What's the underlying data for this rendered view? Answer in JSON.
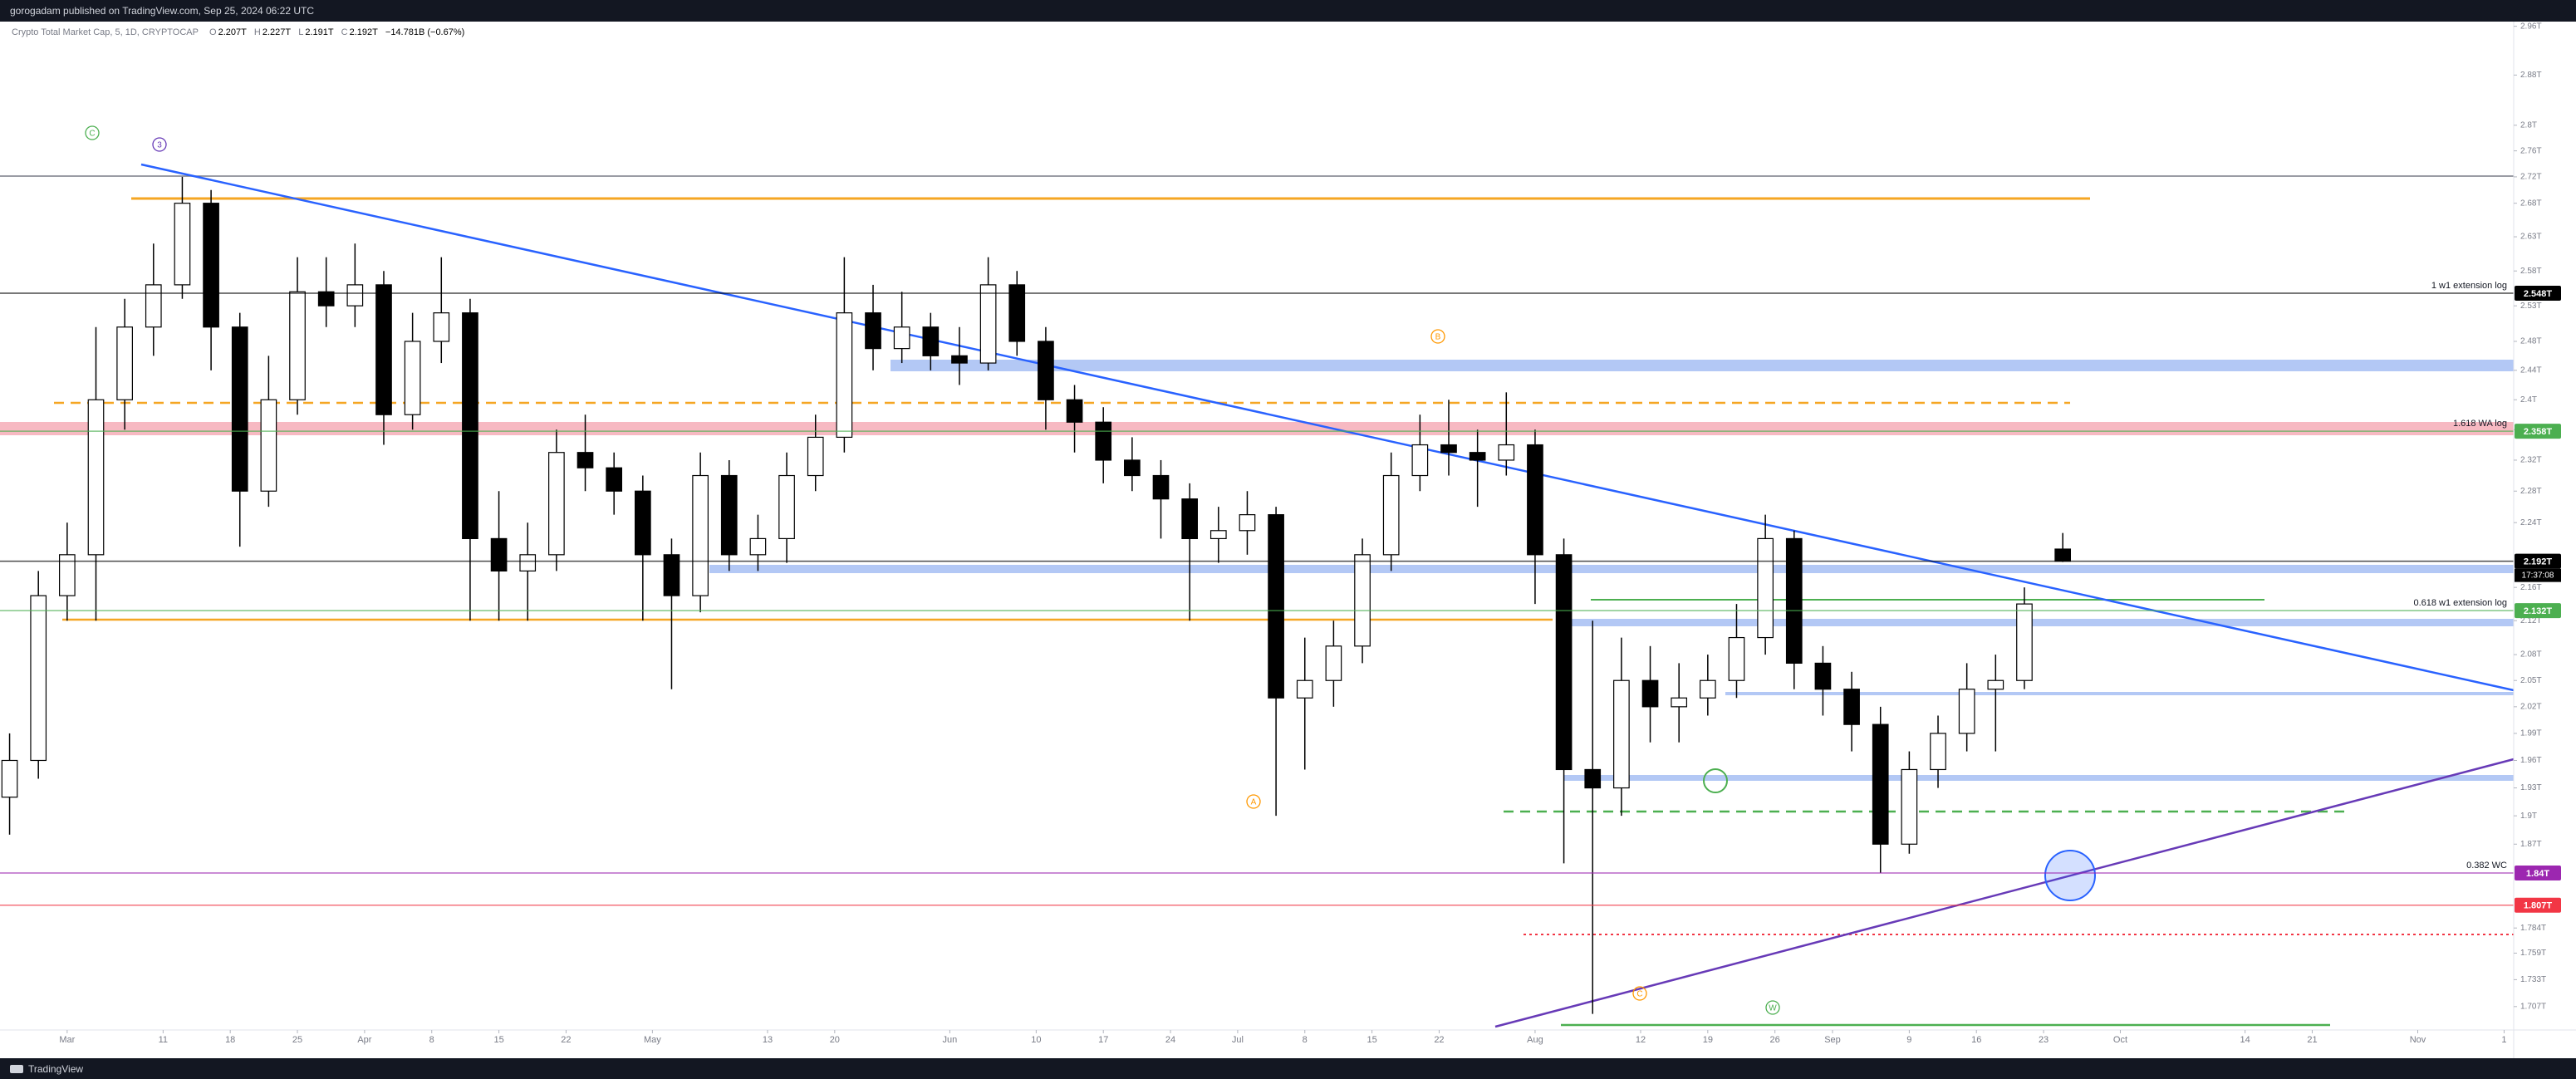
{
  "header": {
    "text": "gorogadam published on TradingView.com, Sep 25, 2024 06:22 UTC"
  },
  "footer": {
    "brand": "TradingView"
  },
  "chart_data": {
    "type": "candlestick",
    "legend": {
      "symbol": "Crypto Total Market Cap, 5, 1D, CRYPTOCAP",
      "items": [
        {
          "key": "O",
          "value": "2.207T"
        },
        {
          "key": "H",
          "value": "2.227T"
        },
        {
          "key": "L",
          "value": "2.191T"
        },
        {
          "key": "C",
          "value": "2.192T"
        }
      ],
      "change": "−14.781B (−0.67%)"
    },
    "x": [
      "Feb 24",
      "Feb 27",
      "Mar 1",
      "Mar 4",
      "Mar 7",
      "Mar 10",
      "Mar 13",
      "Mar 16",
      "Mar 19",
      "Mar 22",
      "Mar 25",
      "Mar 28",
      "Mar 31",
      "Apr 3",
      "Apr 6",
      "Apr 9",
      "Apr 12",
      "Apr 15",
      "Apr 18",
      "Apr 21",
      "Apr 24",
      "Apr 27",
      "Apr 30",
      "May 3",
      "May 6",
      "May 9",
      "May 12",
      "May 15",
      "May 18",
      "May 21",
      "May 24",
      "May 27",
      "May 30",
      "Jun 2",
      "Jun 5",
      "Jun 8",
      "Jun 11",
      "Jun 14",
      "Jun 17",
      "Jun 20",
      "Jun 23",
      "Jun 26",
      "Jun 29",
      "Jul 2",
      "Jul 5",
      "Jul 8",
      "Jul 11",
      "Jul 14",
      "Jul 17",
      "Jul 20",
      "Jul 23",
      "Jul 26",
      "Jul 29",
      "Aug 1",
      "Aug 4",
      "Aug 7",
      "Aug 10",
      "Aug 13",
      "Aug 16",
      "Aug 19",
      "Aug 22",
      "Aug 25",
      "Aug 28",
      "Aug 31",
      "Sep 3",
      "Sep 6",
      "Sep 9",
      "Sep 12",
      "Sep 15",
      "Sep 18",
      "Sep 21",
      "Sep 25"
    ],
    "open": [
      1.92,
      1.96,
      2.15,
      2.2,
      2.4,
      2.5,
      2.56,
      2.68,
      2.5,
      2.28,
      2.4,
      2.55,
      2.53,
      2.56,
      2.38,
      2.48,
      2.52,
      2.22,
      2.18,
      2.2,
      2.33,
      2.31,
      2.28,
      2.2,
      2.15,
      2.3,
      2.2,
      2.22,
      2.3,
      2.35,
      2.52,
      2.47,
      2.5,
      2.46,
      2.45,
      2.56,
      2.48,
      2.4,
      2.37,
      2.32,
      2.3,
      2.27,
      2.22,
      2.23,
      2.25,
      2.03,
      2.05,
      2.09,
      2.2,
      2.3,
      2.34,
      2.33,
      2.32,
      2.34,
      2.2,
      1.95,
      1.93,
      2.05,
      2.02,
      2.03,
      2.05,
      2.1,
      2.22,
      2.07,
      2.04,
      2.0,
      1.87,
      1.95,
      1.99,
      2.04,
      2.05,
      2.207
    ],
    "high": [
      1.99,
      2.18,
      2.24,
      2.5,
      2.54,
      2.62,
      2.72,
      2.7,
      2.52,
      2.46,
      2.6,
      2.6,
      2.62,
      2.58,
      2.52,
      2.6,
      2.54,
      2.28,
      2.24,
      2.36,
      2.38,
      2.33,
      2.3,
      2.22,
      2.33,
      2.32,
      2.25,
      2.33,
      2.38,
      2.6,
      2.56,
      2.55,
      2.52,
      2.5,
      2.6,
      2.58,
      2.5,
      2.42,
      2.39,
      2.35,
      2.32,
      2.29,
      2.26,
      2.28,
      2.26,
      2.1,
      2.12,
      2.22,
      2.33,
      2.38,
      2.4,
      2.36,
      2.41,
      2.36,
      2.22,
      2.12,
      2.1,
      2.09,
      2.07,
      2.08,
      2.14,
      2.25,
      2.23,
      2.09,
      2.06,
      2.02,
      1.97,
      2.01,
      2.07,
      2.08,
      2.16,
      2.227
    ],
    "low": [
      1.88,
      1.94,
      2.12,
      2.12,
      2.36,
      2.46,
      2.54,
      2.44,
      2.21,
      2.26,
      2.38,
      2.5,
      2.5,
      2.34,
      2.36,
      2.45,
      2.12,
      2.12,
      2.12,
      2.18,
      2.28,
      2.25,
      2.12,
      2.04,
      2.13,
      2.18,
      2.18,
      2.19,
      2.28,
      2.33,
      2.44,
      2.45,
      2.44,
      2.42,
      2.44,
      2.46,
      2.36,
      2.33,
      2.29,
      2.28,
      2.22,
      2.12,
      2.19,
      2.2,
      1.9,
      1.95,
      2.02,
      2.07,
      2.18,
      2.28,
      2.3,
      2.26,
      2.3,
      2.14,
      1.85,
      1.7,
      1.9,
      1.98,
      1.98,
      2.01,
      2.03,
      2.08,
      2.04,
      2.01,
      1.97,
      1.84,
      1.86,
      1.93,
      1.97,
      1.97,
      2.04,
      2.191
    ],
    "close": [
      1.96,
      2.15,
      2.2,
      2.4,
      2.5,
      2.56,
      2.68,
      2.5,
      2.28,
      2.4,
      2.55,
      2.53,
      2.56,
      2.38,
      2.48,
      2.52,
      2.22,
      2.18,
      2.2,
      2.33,
      2.31,
      2.28,
      2.2,
      2.15,
      2.3,
      2.2,
      2.22,
      2.3,
      2.35,
      2.52,
      2.47,
      2.5,
      2.46,
      2.45,
      2.56,
      2.48,
      2.4,
      2.37,
      2.32,
      2.3,
      2.27,
      2.22,
      2.23,
      2.25,
      2.03,
      2.05,
      2.09,
      2.2,
      2.3,
      2.34,
      2.33,
      2.32,
      2.34,
      2.2,
      1.95,
      1.93,
      2.05,
      2.02,
      2.03,
      2.05,
      2.1,
      2.22,
      2.07,
      2.04,
      2.0,
      1.87,
      1.95,
      1.99,
      2.04,
      2.05,
      2.14,
      2.192
    ],
    "up_color": "#ffffff",
    "down_color": "#000000",
    "xlim": [
      "Feb 23",
      "Nov 11"
    ],
    "xticks": [
      {
        "value": "Mar 1",
        "label": "Mar"
      },
      {
        "value": "Mar 11",
        "label": "11"
      },
      {
        "value": "Mar 18",
        "label": "18"
      },
      {
        "value": "Mar 25",
        "label": "25"
      },
      {
        "value": "Apr 1",
        "label": "Apr"
      },
      {
        "value": "Apr 8",
        "label": "8"
      },
      {
        "value": "Apr 15",
        "label": "15"
      },
      {
        "value": "Apr 22",
        "label": "22"
      },
      {
        "value": "May 1",
        "label": "May"
      },
      {
        "value": "May 13",
        "label": "13"
      },
      {
        "value": "May 20",
        "label": "20"
      },
      {
        "value": "Jun 1",
        "label": "Jun"
      },
      {
        "value": "Jun 10",
        "label": "10"
      },
      {
        "value": "Jun 17",
        "label": "17"
      },
      {
        "value": "Jun 24",
        "label": "24"
      },
      {
        "value": "Jul 1",
        "label": "Jul"
      },
      {
        "value": "Jul 8",
        "label": "8"
      },
      {
        "value": "Jul 15",
        "label": "15"
      },
      {
        "value": "Jul 22",
        "label": "22"
      },
      {
        "value": "Aug 1",
        "label": "Aug"
      },
      {
        "value": "Aug 12",
        "label": "12"
      },
      {
        "value": "Aug 19",
        "label": "19"
      },
      {
        "value": "Aug 26",
        "label": "26"
      },
      {
        "value": "Sep 1",
        "label": "Sep"
      },
      {
        "value": "Sep 9",
        "label": "9"
      },
      {
        "value": "Sep 16",
        "label": "16"
      },
      {
        "value": "Sep 23",
        "label": "23"
      },
      {
        "value": "Oct 1",
        "label": "Oct"
      },
      {
        "value": "Oct 14",
        "label": "14"
      },
      {
        "value": "Oct 21",
        "label": "21"
      },
      {
        "value": "Nov 1",
        "label": "Nov"
      },
      {
        "value": "Nov 10",
        "label": "1"
      }
    ],
    "ylim": [
      1.691,
      2.965
    ],
    "log_scale": true,
    "yticks": [
      {
        "value": 2.96,
        "label": "2.96T"
      },
      {
        "value": 2.88,
        "label": "2.88T"
      },
      {
        "value": 2.8,
        "label": "2.8T"
      },
      {
        "value": 2.76,
        "label": "2.76T"
      },
      {
        "value": 2.72,
        "label": "2.72T"
      },
      {
        "value": 2.68,
        "label": "2.68T"
      },
      {
        "value": 2.63,
        "label": "2.63T"
      },
      {
        "value": 2.58,
        "label": "2.58T"
      },
      {
        "value": 2.53,
        "label": "2.53T"
      },
      {
        "value": 2.48,
        "label": "2.48T"
      },
      {
        "value": 2.44,
        "label": "2.44T"
      },
      {
        "value": 2.4,
        "label": "2.4T"
      },
      {
        "value": 2.36,
        "label": "2.36T"
      },
      {
        "value": 2.32,
        "label": "2.32T"
      },
      {
        "value": 2.28,
        "label": "2.28T"
      },
      {
        "value": 2.24,
        "label": "2.24T"
      },
      {
        "value": 2.16,
        "label": "2.16T"
      },
      {
        "value": 2.12,
        "label": "2.12T"
      },
      {
        "value": 2.08,
        "label": "2.08T"
      },
      {
        "value": 2.05,
        "label": "2.05T"
      },
      {
        "value": 2.02,
        "label": "2.02T"
      },
      {
        "value": 1.99,
        "label": "1.99T"
      },
      {
        "value": 1.96,
        "label": "1.96T"
      },
      {
        "value": 1.93,
        "label": "1.93T"
      },
      {
        "value": 1.9,
        "label": "1.9T"
      },
      {
        "value": 1.87,
        "label": "1.87T"
      },
      {
        "value": 1.784,
        "label": "1.784T"
      },
      {
        "value": 1.759,
        "label": "1.759T"
      },
      {
        "value": 1.733,
        "label": "1.733T"
      },
      {
        "value": 1.707,
        "label": "1.707T"
      }
    ],
    "grid": false,
    "levels": [
      {
        "value": 2.548,
        "label": "2.548T",
        "note": "1 w1 extension log",
        "color": "#000000"
      },
      {
        "value": 2.358,
        "label": "2.358T",
        "note": "1.618 WA log",
        "color": "#4caf50"
      },
      {
        "value": 2.192,
        "label": "2.192T",
        "countdown": "17:37:08",
        "color": "#000000"
      },
      {
        "value": 2.132,
        "label": "2.132T",
        "note": "0.618 w1 extension log",
        "color": "#4caf50"
      },
      {
        "value": 1.84,
        "label": "1.84T",
        "note": "0.382 WC",
        "color": "#9c27b0"
      },
      {
        "value": 1.807,
        "label": "1.807T",
        "color": "#f23645"
      }
    ],
    "wave_labels": [
      {
        "text": "C",
        "color": "#4caf50"
      },
      {
        "text": "3",
        "color": "#673ab7"
      },
      {
        "text": "B",
        "color": "#ff9800"
      },
      {
        "text": "A",
        "color": "#ff9800"
      },
      {
        "text": "C",
        "color": "#ff9800"
      },
      {
        "text": "W",
        "color": "#4caf50"
      }
    ]
  }
}
